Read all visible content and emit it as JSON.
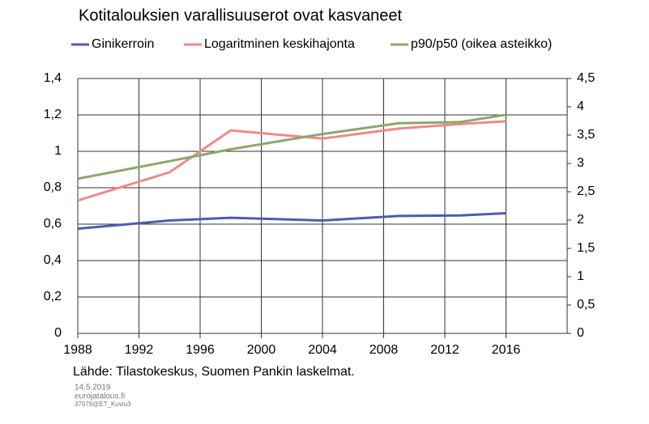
{
  "chart_data": {
    "type": "line",
    "title": "Kotitalouksien varallisuuserot ovat kasvaneet",
    "source": "Lähde: Tilastokeskus, Suomen Pankin laskelmat.",
    "footer": [
      "14.5.2019",
      "eurojatalous.fi",
      "37078@ET_Kuvio3"
    ],
    "x": [
      1988,
      1994,
      1998,
      2004,
      2009,
      2013,
      2016
    ],
    "series": [
      {
        "name": "Ginikerroin",
        "color": "#4f5bb0",
        "values": [
          0.575,
          0.62,
          0.635,
          0.62,
          0.645,
          0.648,
          0.66
        ]
      },
      {
        "name": "Logaritminen keskihajonta",
        "color": "#f0898a",
        "values": [
          0.73,
          0.885,
          1.115,
          1.07,
          1.125,
          1.15,
          1.165
        ]
      },
      {
        "name": "p90/p50 (oikea asteikko)",
        "color": "#8aa86a",
        "axis": "y2",
        "values": [
          2.73,
          3.04,
          3.25,
          3.52,
          3.71,
          3.73,
          3.86
        ]
      }
    ],
    "xlim": [
      1988,
      2020
    ],
    "xticks": [
      1988,
      1992,
      1996,
      2000,
      2004,
      2008,
      2012,
      2016
    ],
    "ylim": [
      0,
      1.4
    ],
    "yticks": [
      0,
      {
        "value": 0.2,
        "label": "0,2"
      },
      {
        "value": 0.4,
        "label": "0,4"
      },
      {
        "value": 0.6,
        "label": "0,6"
      },
      {
        "value": 0.8,
        "label": "0,8"
      },
      1,
      {
        "value": 1.2,
        "label": "1,2"
      },
      {
        "value": 1.4,
        "label": "1,4"
      }
    ],
    "y2lim": [
      0,
      4.5
    ],
    "y2ticks": [
      0,
      {
        "value": 0.5,
        "label": "0,5"
      },
      1,
      {
        "value": 1.5,
        "label": "1,5"
      },
      2,
      {
        "value": 2.5,
        "label": "2,5"
      },
      3,
      {
        "value": 3.5,
        "label": "3,5"
      },
      4,
      {
        "value": 4.5,
        "label": "4,5"
      }
    ],
    "grid": true,
    "legend": "top"
  }
}
